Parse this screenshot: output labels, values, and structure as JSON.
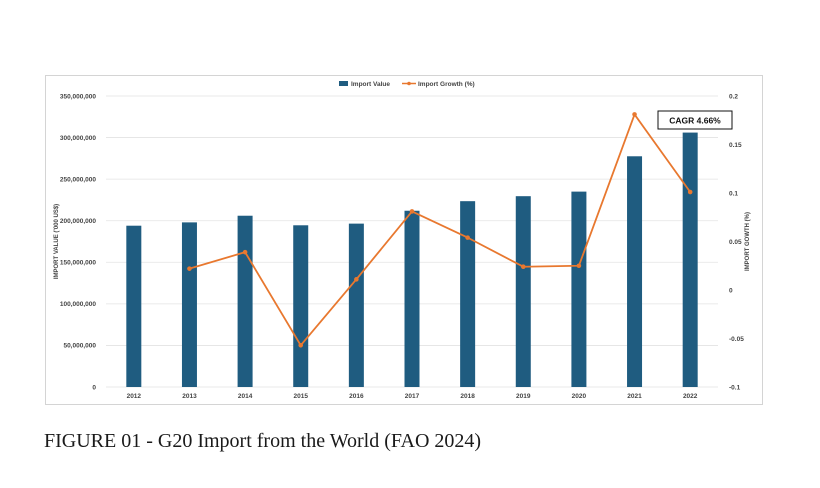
{
  "caption": "FIGURE 01 - G20 Import from the World (FAO 2024)",
  "annotation": "CAGR 4.66%",
  "colors": {
    "bar": "#1f5c80",
    "line": "#e8782f",
    "grid": "#e3e3e3"
  },
  "chart_data": {
    "type": "bar",
    "categories": [
      "2012",
      "2013",
      "2014",
      "2015",
      "2016",
      "2017",
      "2018",
      "2019",
      "2020",
      "2021",
      "2022"
    ],
    "series": [
      {
        "name": "Import Value",
        "type": "bar",
        "axis": "left",
        "values": [
          194000000,
          198000000,
          206000000,
          194500000,
          196500000,
          212000000,
          223500000,
          229500000,
          235000000,
          277500000,
          306000000
        ]
      },
      {
        "name": "Import Growth (%)",
        "type": "line",
        "axis": "right",
        "values": [
          null,
          0.022,
          0.039,
          -0.057,
          0.011,
          0.081,
          0.054,
          0.024,
          0.025,
          0.181,
          0.101
        ]
      }
    ],
    "ylabel": "IMPORT VALUE ('000 US$)",
    "y2label": "IMPORT GOWTH (%)",
    "ylim": [
      0,
      350000000
    ],
    "y2lim": [
      -0.1,
      0.2
    ],
    "yticks": [
      "0",
      "50,000,000",
      "100,000,000",
      "150,000,000",
      "200,000,000",
      "250,000,000",
      "300,000,000",
      "350,000,000"
    ],
    "y2ticks": [
      "-0.1",
      "-0.05",
      "0",
      "0.05",
      "0.1",
      "0.15",
      "0.2"
    ],
    "grid": true,
    "legend": "top-center"
  }
}
